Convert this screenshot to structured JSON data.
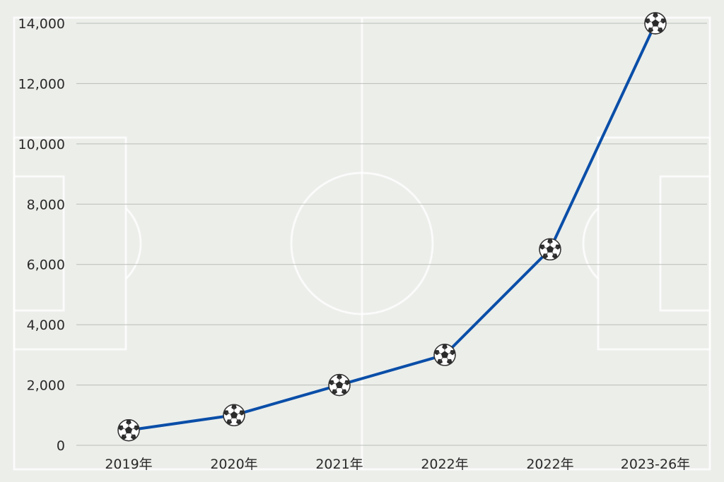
{
  "chart_data": {
    "type": "line",
    "title": "",
    "xlabel": "",
    "ylabel": "",
    "categories": [
      "2019年",
      "2020年",
      "2021年",
      "2022年",
      "2022年",
      "2023-26年"
    ],
    "series": [
      {
        "values": [
          500,
          1000,
          2000,
          3000,
          6500,
          14000
        ]
      }
    ],
    "ylim": [
      0,
      14000
    ],
    "yticks": [
      "0",
      "2,000",
      "4,000",
      "6,000",
      "8,000",
      "10,000",
      "12,000",
      "14,000"
    ],
    "ytick_values": [
      0,
      2000,
      4000,
      6000,
      8000,
      10000,
      12000,
      14000
    ],
    "grid": true,
    "line_color": "#0a4ea8",
    "marker_icon": "soccer-ball-icon",
    "background_icon": "soccer-pitch-icon"
  }
}
